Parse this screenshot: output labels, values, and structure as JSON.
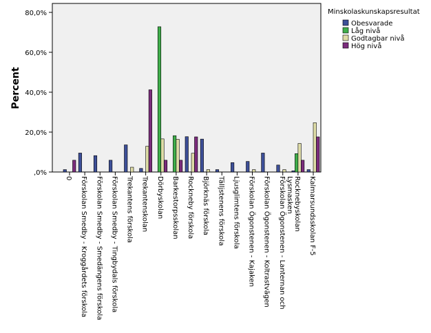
{
  "chart_data": {
    "type": "bar",
    "title": "",
    "xlabel": "",
    "ylabel": "Percent",
    "ylim": [
      0,
      80
    ],
    "yticks": [
      0,
      20,
      40,
      60,
      80
    ],
    "ytick_labels": [
      ",0%",
      "20,0%",
      "40,0%",
      "60,0%",
      "80,0%"
    ],
    "grid": false,
    "legend_position": "top-right",
    "legend_title": "Minskolaskunskapsresultat",
    "categories": [
      "0",
      "Förskolan Smedby - Kroggårdets förskola",
      "Förskolan Smedby - Smedängens förskola",
      "Förskolan Smedby - Tingbydals förskola",
      "Trekantens förskola",
      "Trekantenskolan",
      "Dörbyskolan",
      "Barkestorpsskolan",
      "Rockneby förskola",
      "Björknäs förskola",
      "Tälljstenens förskola",
      "Ljusglimtens förskola",
      "Förskolan Ögonstenen - Kajaken",
      "Förskolan Ögonstenen - Koltrastvägen",
      "Förskolan Ögonstenen - Lanternan och Lysmasken",
      "Rocknebyskolan",
      "Kalmarsundsskolan F-5"
    ],
    "series": [
      {
        "name": "Obesvarade",
        "color": "#3d4f98",
        "values": [
          1.2,
          9.5,
          8.2,
          5.9,
          13.6,
          1.8,
          0,
          0,
          17.7,
          16.5,
          1.2,
          4.7,
          5.3,
          9.5,
          3.5,
          0.6,
          1.2
        ]
      },
      {
        "name": "Låg nivå",
        "color": "#3fae4a",
        "values": [
          0,
          0,
          0,
          0,
          0,
          0,
          72.8,
          18.2,
          0,
          0,
          0,
          0,
          0,
          0,
          0,
          9.2,
          0
        ]
      },
      {
        "name": "Godtagbar nivå",
        "color": "#dedca7",
        "values": [
          0,
          0,
          0,
          0,
          2.4,
          12.9,
          16.6,
          16.4,
          9.4,
          1.2,
          0,
          0,
          1.2,
          0,
          1.2,
          14.3,
          24.7
        ]
      },
      {
        "name": "Hög nivå",
        "color": "#7b2c7c",
        "values": [
          5.9,
          0,
          0,
          0,
          0,
          41.2,
          5.9,
          5.9,
          17.6,
          0,
          0,
          0,
          0,
          0,
          0,
          5.9,
          17.6
        ]
      }
    ]
  }
}
